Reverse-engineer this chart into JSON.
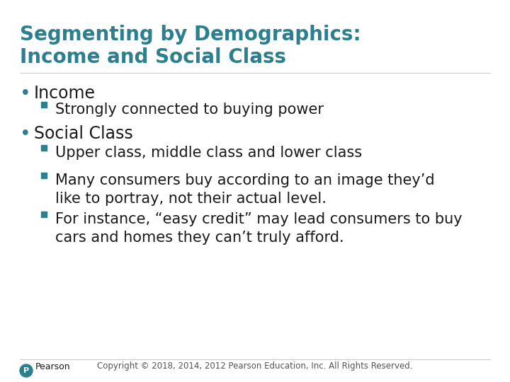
{
  "title_line1": "Segmenting by Demographics:",
  "title_line2": "Income and Social Class",
  "title_color": "#2B7F8E",
  "background_color": "#FFFFFF",
  "bullet_color": "#2B7F8E",
  "text_color": "#1a1a1a",
  "sub_bullet_color": "#2B7F8E",
  "footer_text": "Copyright © 2018, 2014, 2012 Pearson Education, Inc. All Rights Reserved.",
  "pearson_label": "Pearson",
  "title_fontsize": 20,
  "bullet0_fontsize": 17,
  "bullet1_fontsize": 15,
  "footer_fontsize": 8.5,
  "items": [
    {
      "level": 0,
      "text": "Income"
    },
    {
      "level": 1,
      "text": "Strongly connected to buying power"
    },
    {
      "level": 0,
      "text": "Social Class"
    },
    {
      "level": 1,
      "text": "Upper class, middle class and lower class"
    },
    {
      "level": 1,
      "text": "Many consumers buy according to an image they’d\nlike to portray, not their actual level."
    },
    {
      "level": 1,
      "text": "For instance, “easy credit” may lead consumers to buy\ncars and homes they can’t truly afford."
    }
  ]
}
